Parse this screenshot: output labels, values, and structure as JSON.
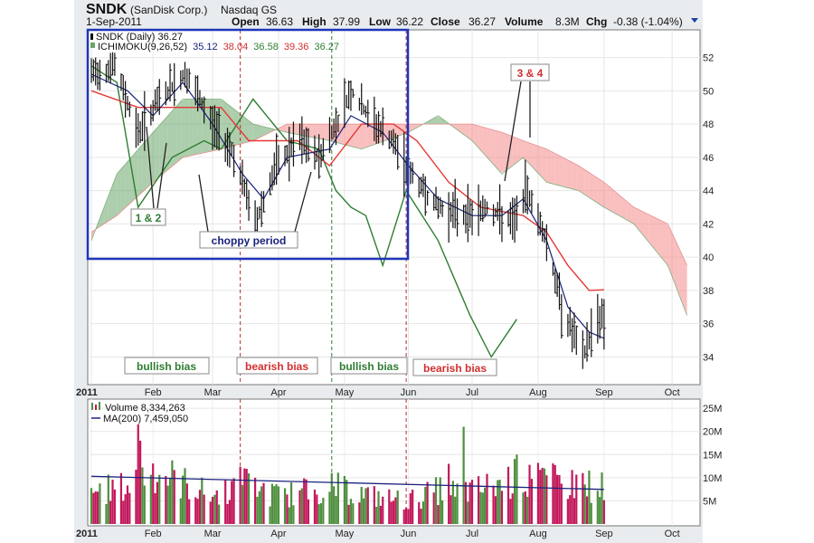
{
  "header": {
    "symbol": "SNDK",
    "company": "(SanDisk Corp.)",
    "exchange": "Nasdaq GS",
    "date": "1-Sep-2011",
    "open_label": "Open",
    "open": "36.63",
    "high_label": "High",
    "high": "37.99",
    "low_label": "Low",
    "low": "36.22",
    "close_label": "Close",
    "close": "36.27",
    "volume_label": "Volume",
    "volume": "8.3M",
    "chg_label": "Chg",
    "chg": "-0.38 (-1.04%)"
  },
  "legend": {
    "price": "SNDK (Daily) 36.27",
    "ichimoku_label": "ICHIMOKU(9,26,52)",
    "ichi_values": [
      "35.12",
      "38.04",
      "36.58",
      "39.36",
      "36.27"
    ],
    "volume": "Volume 8,334,263",
    "ma": "MA(200) 7,459,050"
  },
  "annotations": {
    "one_two": "1 & 2",
    "choppy": "choppy period",
    "three_four": "3 & 4",
    "bias": [
      "bullish bias",
      "bearish bias",
      "bullish bias",
      "bearish bias"
    ]
  },
  "colors": {
    "price_bar": "#111111",
    "tenkan": "#1a237e",
    "kijun": "#e53935",
    "chikou": "#2e7d32",
    "kumo_bull": "#6aa56a",
    "kumo_bear": "#f48a8a",
    "vol_up": "#4f8f3f",
    "vol_down": "#c2185b",
    "ma200": "#1a237e",
    "box": "#1f35b8",
    "bull_text": "#2e7d32",
    "bear_text": "#d32f2f",
    "choppy_text": "#1a237e",
    "vline_bear": "#b03030",
    "vline_bull": "#2e7d32"
  },
  "chart_data": {
    "type": "stock-ohlc-ichimoku",
    "months": [
      "2011",
      "Feb",
      "Mar",
      "Apr",
      "May",
      "Jun",
      "Jul",
      "Aug",
      "Sep",
      "Oct"
    ],
    "price_axis": {
      "ticks": [
        34,
        36,
        38,
        40,
        42,
        44,
        46,
        48,
        50,
        52
      ],
      "range": [
        32.5,
        53.5
      ]
    },
    "volume_axis": {
      "ticks": [
        "5M",
        "10M",
        "15M",
        "20M",
        "25M"
      ],
      "range": [
        0,
        26
      ]
    },
    "vlines": [
      {
        "date": "2011-03-14",
        "kind": "bear"
      },
      {
        "date": "2011-04-26",
        "kind": "bull"
      },
      {
        "date": "2011-05-31",
        "kind": "bear"
      }
    ],
    "price_knots": [
      [
        "2011-01-03",
        51.0
      ],
      [
        "2011-01-14",
        51.5
      ],
      [
        "2011-01-25",
        47.5
      ],
      [
        "2011-02-04",
        49.5
      ],
      [
        "2011-02-16",
        51.0
      ],
      [
        "2011-03-01",
        48.0
      ],
      [
        "2011-03-10",
        46.5
      ],
      [
        "2011-03-21",
        42.0
      ],
      [
        "2011-03-31",
        45.5
      ],
      [
        "2011-04-11",
        47.0
      ],
      [
        "2011-04-20",
        46.0
      ],
      [
        "2011-04-28",
        48.0
      ],
      [
        "2011-05-05",
        50.0
      ],
      [
        "2011-05-13",
        48.5
      ],
      [
        "2011-05-24",
        47.0
      ],
      [
        "2011-06-02",
        45.0
      ],
      [
        "2011-06-15",
        43.0
      ],
      [
        "2011-06-29",
        42.5
      ],
      [
        "2011-07-08",
        43.0
      ],
      [
        "2011-07-20",
        42.0
      ],
      [
        "2011-07-27",
        44.0
      ],
      [
        "2011-08-05",
        41.0
      ],
      [
        "2011-08-12",
        37.0
      ],
      [
        "2011-08-22",
        34.0
      ],
      [
        "2011-08-29",
        36.5
      ],
      [
        "2011-09-01",
        36.27
      ]
    ],
    "tenkan": [
      [
        "2011-01-03",
        51.0
      ],
      [
        "2011-01-20",
        50.0
      ],
      [
        "2011-02-01",
        48.5
      ],
      [
        "2011-02-15",
        50.5
      ],
      [
        "2011-03-01",
        48.0
      ],
      [
        "2011-03-15",
        45.0
      ],
      [
        "2011-03-25",
        43.5
      ],
      [
        "2011-04-05",
        46.0
      ],
      [
        "2011-04-25",
        46.5
      ],
      [
        "2011-05-05",
        48.5
      ],
      [
        "2011-05-20",
        47.5
      ],
      [
        "2011-06-01",
        45.5
      ],
      [
        "2011-06-15",
        43.5
      ],
      [
        "2011-07-01",
        42.5
      ],
      [
        "2011-07-15",
        42.5
      ],
      [
        "2011-07-25",
        43.5
      ],
      [
        "2011-08-05",
        41.0
      ],
      [
        "2011-08-15",
        37.0
      ],
      [
        "2011-08-25",
        35.5
      ],
      [
        "2011-09-01",
        35.12
      ]
    ],
    "kijun": [
      [
        "2011-01-03",
        50.0
      ],
      [
        "2011-01-25",
        49.0
      ],
      [
        "2011-02-10",
        49.0
      ],
      [
        "2011-03-05",
        49.0
      ],
      [
        "2011-03-18",
        47.0
      ],
      [
        "2011-04-10",
        47.0
      ],
      [
        "2011-04-25",
        45.5
      ],
      [
        "2011-05-10",
        48.0
      ],
      [
        "2011-05-25",
        48.0
      ],
      [
        "2011-06-05",
        47.0
      ],
      [
        "2011-06-20",
        44.5
      ],
      [
        "2011-07-05",
        43.0
      ],
      [
        "2011-07-25",
        42.5
      ],
      [
        "2011-08-05",
        41.5
      ],
      [
        "2011-08-15",
        39.5
      ],
      [
        "2011-08-25",
        38.0
      ],
      [
        "2011-09-01",
        38.04
      ]
    ],
    "chikou": [
      [
        "2011-01-03",
        51.5
      ],
      [
        "2011-01-15",
        50.5
      ],
      [
        "2011-01-25",
        43.0
      ],
      [
        "2011-02-10",
        46.0
      ],
      [
        "2011-02-25",
        47.0
      ],
      [
        "2011-03-05",
        46.5
      ],
      [
        "2011-03-20",
        49.5
      ],
      [
        "2011-04-05",
        47.0
      ],
      [
        "2011-04-20",
        46.5
      ],
      [
        "2011-04-28",
        44.0
      ],
      [
        "2011-05-05",
        43.0
      ],
      [
        "2011-05-12",
        42.5
      ],
      [
        "2011-05-20",
        39.5
      ],
      [
        "2011-05-31",
        44.0
      ],
      [
        "2011-06-15",
        41.0
      ],
      [
        "2011-06-30",
        36.5
      ],
      [
        "2011-07-10",
        34.0
      ],
      [
        "2011-07-22",
        36.27
      ]
    ],
    "senkou_a": [
      [
        "2011-01-03",
        41.0
      ],
      [
        "2011-01-15",
        45.0
      ],
      [
        "2011-02-01",
        47.5
      ],
      [
        "2011-02-15",
        49.5
      ],
      [
        "2011-03-05",
        49.5
      ],
      [
        "2011-03-20",
        48.0
      ],
      [
        "2011-04-05",
        47.5
      ],
      [
        "2011-04-25",
        47.0
      ],
      [
        "2011-05-10",
        46.5
      ],
      [
        "2011-06-01",
        47.5
      ],
      [
        "2011-06-15",
        48.5
      ],
      [
        "2011-07-01",
        47.0
      ],
      [
        "2011-07-15",
        45.0
      ],
      [
        "2011-07-25",
        46.0
      ],
      [
        "2011-08-05",
        44.5
      ],
      [
        "2011-08-20",
        44.0
      ],
      [
        "2011-09-01",
        43.0
      ],
      [
        "2011-09-15",
        42.0
      ],
      [
        "2011-10-01",
        39.5
      ],
      [
        "2011-10-10",
        36.5
      ]
    ],
    "senkou_b": [
      [
        "2011-01-03",
        41.5
      ],
      [
        "2011-01-15",
        42.5
      ],
      [
        "2011-02-01",
        44.5
      ],
      [
        "2011-02-15",
        46.0
      ],
      [
        "2011-03-05",
        46.5
      ],
      [
        "2011-03-20",
        47.0
      ],
      [
        "2011-04-05",
        48.0
      ],
      [
        "2011-04-25",
        48.0
      ],
      [
        "2011-05-10",
        48.0
      ],
      [
        "2011-06-01",
        48.0
      ],
      [
        "2011-06-15",
        48.0
      ],
      [
        "2011-07-01",
        48.0
      ],
      [
        "2011-07-15",
        47.5
      ],
      [
        "2011-07-25",
        47.0
      ],
      [
        "2011-08-05",
        46.5
      ],
      [
        "2011-08-20",
        45.5
      ],
      [
        "2011-09-01",
        44.5
      ],
      [
        "2011-09-15",
        43.0
      ],
      [
        "2011-10-01",
        42.0
      ],
      [
        "2011-10-10",
        39.5
      ]
    ],
    "volume_knots": [
      [
        "2011-01-03",
        7
      ],
      [
        "2011-01-20",
        8
      ],
      [
        "2011-01-31",
        12
      ],
      [
        "2011-02-15",
        9
      ],
      [
        "2011-03-01",
        6
      ],
      [
        "2011-03-15",
        9
      ],
      [
        "2011-04-01",
        6
      ],
      [
        "2011-04-26",
        8
      ],
      [
        "2011-05-15",
        6
      ],
      [
        "2011-06-01",
        5
      ],
      [
        "2011-06-20",
        8
      ],
      [
        "2011-07-01",
        7
      ],
      [
        "2011-07-22",
        10
      ],
      [
        "2011-08-10",
        9
      ],
      [
        "2011-09-01",
        8
      ]
    ],
    "volume_spikes": [
      [
        "2011-01-25",
        21.5
      ],
      [
        "2011-01-26",
        18.0
      ],
      [
        "2011-03-16",
        12.0
      ],
      [
        "2011-04-26",
        11.0
      ],
      [
        "2011-06-20",
        13.0
      ],
      [
        "2011-06-27",
        21.0
      ],
      [
        "2011-07-22",
        15.0
      ],
      [
        "2011-08-04",
        12.0
      ],
      [
        "2011-08-22",
        11.0
      ]
    ],
    "ma200": [
      [
        "2011-01-03",
        10.3
      ],
      [
        "2011-09-01",
        7.46
      ]
    ]
  }
}
